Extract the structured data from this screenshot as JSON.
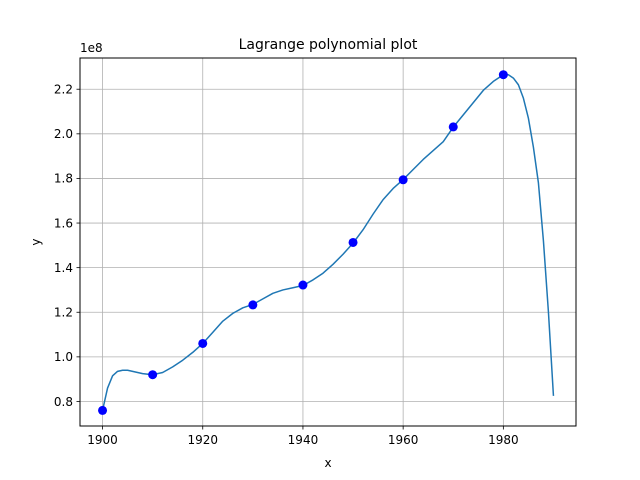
{
  "chart_data": {
    "type": "line",
    "title": "Lagrange polynomial plot",
    "xlabel": "x",
    "ylabel": "y",
    "y_exponent_label": "1e8",
    "y_scale": 100000000,
    "xlim": [
      1895.5,
      1994.5
    ],
    "ylim": [
      0.69,
      2.34
    ],
    "xticks": [
      1900,
      1920,
      1940,
      1960,
      1980
    ],
    "yticks": [
      0.8,
      1.0,
      1.2,
      1.4,
      1.6,
      1.8,
      2.0,
      2.2
    ],
    "ytick_labels": [
      "0.8",
      "1.0",
      "1.2",
      "1.4",
      "1.6",
      "1.8",
      "2.0",
      "2.2"
    ],
    "grid": true,
    "series": [
      {
        "kind": "line",
        "color": "#1f77b4",
        "x": [
          1900,
          1901,
          1902,
          1903,
          1904,
          1905,
          1906,
          1907,
          1908,
          1910,
          1912,
          1914,
          1916,
          1918,
          1920,
          1922,
          1924,
          1926,
          1928,
          1930,
          1932,
          1934,
          1936,
          1938,
          1940,
          1942,
          1944,
          1946,
          1948,
          1950,
          1952,
          1954,
          1956,
          1958,
          1960,
          1962,
          1964,
          1966,
          1968,
          1970,
          1972,
          1974,
          1976,
          1978,
          1980,
          1981,
          1982,
          1983,
          1984,
          1985,
          1986,
          1987,
          1988,
          1989,
          1990
        ],
        "y": [
          0.76,
          0.86,
          0.915,
          0.935,
          0.94,
          0.94,
          0.935,
          0.93,
          0.925,
          0.92,
          0.93,
          0.955,
          0.985,
          1.02,
          1.06,
          1.11,
          1.16,
          1.195,
          1.22,
          1.235,
          1.26,
          1.285,
          1.3,
          1.31,
          1.32,
          1.345,
          1.375,
          1.415,
          1.46,
          1.51,
          1.57,
          1.64,
          1.705,
          1.755,
          1.795,
          1.84,
          1.885,
          1.925,
          1.965,
          2.03,
          2.085,
          2.14,
          2.195,
          2.235,
          2.265,
          2.265,
          2.25,
          2.22,
          2.16,
          2.07,
          1.94,
          1.78,
          1.52,
          1.2,
          0.825
        ]
      },
      {
        "kind": "points",
        "color": "#0000ff",
        "x": [
          1900,
          1910,
          1920,
          1930,
          1940,
          1950,
          1960,
          1970,
          1980
        ],
        "y": [
          0.76,
          0.92,
          1.06,
          1.233,
          1.322,
          1.513,
          1.794,
          2.031,
          2.265
        ]
      }
    ]
  }
}
